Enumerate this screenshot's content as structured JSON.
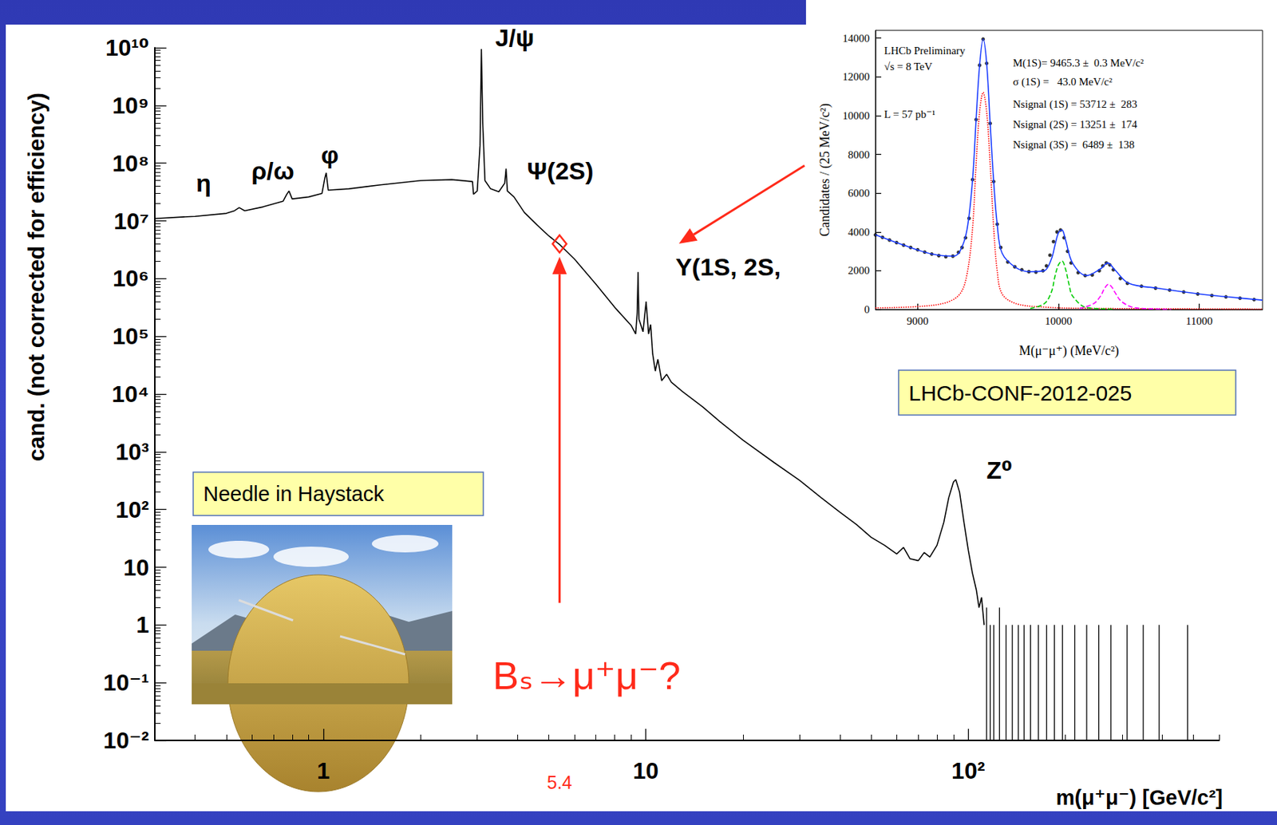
{
  "chart_data": [
    {
      "type": "line",
      "x_label": "m(μ⁺μ⁻) [GeV/c²]",
      "y_label": "cand. (not corrected for efficiency)",
      "log": true,
      "grid": false,
      "xlim": [
        0.3,
        600
      ],
      "xticks": [
        1,
        10,
        {
          "value": 100,
          "label": "10²"
        }
      ],
      "ylim": [
        0.01,
        10000000000
      ],
      "yticks": [
        {
          "value": 10000000000,
          "label": "10¹⁰"
        },
        {
          "value": 1000000000,
          "label": "10⁹"
        },
        {
          "value": 100000000,
          "label": "10⁸"
        },
        {
          "value": 10000000,
          "label": "10⁷"
        },
        {
          "value": 1000000,
          "label": "10⁶"
        },
        {
          "value": 100000,
          "label": "10⁵"
        },
        {
          "value": 10000,
          "label": "10⁴"
        },
        {
          "value": 1000,
          "label": "10³"
        },
        {
          "value": 100,
          "label": "10²"
        },
        10,
        1,
        {
          "value": 0.1,
          "label": "10⁻¹"
        },
        {
          "value": 0.01,
          "label": "10⁻²"
        }
      ],
      "series": [
        {
          "type": "line",
          "color": "#000000",
          "line_style": "solid",
          "x": [
            0.3,
            0.4,
            0.5,
            0.53,
            0.548,
            0.57,
            0.65,
            0.75,
            0.77,
            0.782,
            0.8,
            0.9,
            0.99,
            1.01,
            1.02,
            1.035,
            1.2,
            1.5,
            2.0,
            2.5,
            2.9,
            2.92,
            3.0,
            3.06,
            3.09,
            3.12,
            3.17,
            3.3,
            3.5,
            3.65,
            3.686,
            3.72,
            3.9,
            4.2,
            4.6,
            5.0,
            5.4,
            6.0,
            7.0,
            8.0,
            9.0,
            9.3,
            9.4,
            9.46,
            9.52,
            9.8,
            10.02,
            10.2,
            10.35,
            10.5,
            10.7,
            10.9,
            11.2,
            11.6,
            12,
            13,
            15,
            17,
            20,
            25,
            30,
            35,
            40,
            45,
            50,
            55,
            60,
            63,
            66,
            70,
            73,
            76,
            80,
            84,
            87,
            90,
            91.5,
            94,
            97,
            100,
            103,
            106,
            108,
            110,
            112
          ],
          "values": [
            11000000,
            12000000,
            13500000,
            15000000,
            17000000,
            15000000,
            17500000,
            22000000,
            29000000,
            33000000,
            24000000,
            26000000,
            30000000,
            55000000,
            68000000,
            34000000,
            36000000,
            42000000,
            50000000,
            52000000,
            48000000,
            29000000,
            33000000,
            200000000,
            9500000000,
            500000000,
            50000000,
            36000000,
            32000000,
            45000000,
            80000000,
            33000000,
            26000000,
            14000000,
            8500000,
            5500000,
            3900000,
            2200000,
            800000,
            320000,
            155000,
            110000,
            250000,
            1300000,
            200000,
            120000,
            400000,
            110000,
            160000,
            50000,
            25000,
            40000,
            17000,
            22000,
            16000,
            11000,
            6000,
            3300,
            1600,
            650,
            320,
            160,
            90,
            55,
            33,
            24,
            17,
            22,
            14,
            13,
            18,
            15,
            24,
            60,
            160,
            300,
            330,
            200,
            60,
            20,
            8,
            4,
            2,
            3,
            1
          ]
        },
        {
          "type": "spike",
          "color": "#000000",
          "x": [
            114,
            117,
            120,
            125,
            131,
            137,
            143,
            149,
            156,
            165,
            175,
            185,
            196,
            214,
            233,
            254,
            277,
            311,
            349,
            391,
            479
          ],
          "values": [
            2,
            1,
            1,
            2,
            1,
            1,
            1,
            1,
            1,
            1,
            1,
            1,
            1,
            1,
            1,
            1,
            1,
            1,
            1,
            1,
            1
          ]
        }
      ],
      "annotations": [
        {
          "text": "η",
          "x": 0.425,
          "y": 46000000
        },
        {
          "text": "ρ/ω",
          "x": 0.697,
          "y": 74000000
        },
        {
          "text": "φ",
          "x": 1.047,
          "y": 140000000
        },
        {
          "text": "J/ψ",
          "x": 3.92,
          "y": 15000000000
        },
        {
          "text": "Ψ(2S)",
          "x": 5.43,
          "y": 74000000
        },
        {
          "text": "Υ(1S, 2S,",
          "x": 18,
          "y": 1600000
        },
        {
          "text": "Z⁰",
          "x": 125,
          "y": 480
        },
        {
          "text": "Bₛ→μ⁺μ⁻?",
          "x": 6.55,
          "y": 0.135,
          "color": "#ff2a1a"
        },
        {
          "text": "5.4",
          "x": 5.4,
          "y": 0.0019,
          "color": "#ff2a1a"
        },
        {
          "marker": "diamond",
          "x": 5.4,
          "y": 4000000,
          "color": "#ff2a1a"
        }
      ],
      "boxed_notes": [
        "Needle in Haystack"
      ]
    },
    {
      "type": "line",
      "x_label": "M(μ⁻μ⁺) (MeV/c²)",
      "y_label": "Candidates / (25 MeV/c²)",
      "grid": false,
      "xlim": [
        8700,
        11450
      ],
      "xticks": [
        9000,
        10000,
        11000
      ],
      "ylim": [
        0,
        14400
      ],
      "yticks": [
        0,
        2000,
        4000,
        6000,
        8000,
        10000,
        12000,
        14000
      ],
      "series": [
        {
          "type": "line",
          "color": "#ff0000",
          "line_style": "dotted",
          "x": [
            8700,
            9000,
            9200,
            9300,
            9350,
            9390,
            9415,
            9440,
            9465,
            9490,
            9515,
            9540,
            9565,
            9600,
            9700,
            9900,
            10200,
            11450
          ],
          "values": [
            80,
            150,
            350,
            800,
            1800,
            4200,
            7500,
            10200,
            11200,
            10200,
            7500,
            4200,
            2000,
            800,
            300,
            120,
            60,
            20
          ]
        },
        {
          "type": "line",
          "color": "#00cc00",
          "line_style": "dashed",
          "x": [
            9800,
            9900,
            9950,
            9975,
            10000,
            10025,
            10050,
            10075,
            10100,
            10200,
            10400
          ],
          "values": [
            50,
            300,
            900,
            1700,
            2300,
            2500,
            2100,
            1300,
            700,
            100,
            20
          ]
        },
        {
          "type": "line",
          "color": "#ff00ff",
          "line_style": "dashed",
          "x": [
            10150,
            10250,
            10300,
            10325,
            10355,
            10380,
            10400,
            10450,
            10550,
            10800
          ],
          "values": [
            50,
            300,
            700,
            1050,
            1300,
            1150,
            900,
            400,
            80,
            10
          ]
        },
        {
          "type": "line",
          "color": "#1a3cff",
          "line_style": "solid",
          "x": [
            8700,
            8900,
            9100,
            9250,
            9300,
            9350,
            9390,
            9415,
            9440,
            9465,
            9490,
            9515,
            9540,
            9565,
            9600,
            9700,
            9800,
            9900,
            9950,
            9975,
            10000,
            10025,
            10050,
            10100,
            10200,
            10300,
            10350,
            10400,
            10500,
            10700,
            11000,
            11200,
            11450
          ],
          "values": [
            3850,
            3320,
            2860,
            2750,
            3000,
            4100,
            6700,
            9800,
            12600,
            13950,
            12700,
            9600,
            6600,
            4400,
            2900,
            2150,
            1950,
            2000,
            2600,
            3300,
            3950,
            4100,
            3600,
            2400,
            1750,
            2100,
            2400,
            2050,
            1350,
            1100,
            800,
            650,
            480
          ]
        },
        {
          "type": "scatter",
          "color": "#000000",
          "marker": "circle",
          "x": [
            8700,
            8750,
            8800,
            8850,
            8900,
            8950,
            9000,
            9050,
            9100,
            9150,
            9200,
            9250,
            9290,
            9315,
            9340,
            9365,
            9390,
            9415,
            9440,
            9465,
            9490,
            9515,
            9540,
            9565,
            9590,
            9640,
            9690,
            9740,
            9790,
            9840,
            9890,
            9915,
            9940,
            9965,
            9990,
            10015,
            10040,
            10065,
            10090,
            10140,
            10190,
            10240,
            10290,
            10315,
            10340,
            10365,
            10390,
            10440,
            10490,
            10590,
            10690,
            10790,
            10890,
            10990,
            11090,
            11190,
            11290,
            11390
          ],
          "values": [
            3850,
            3720,
            3580,
            3450,
            3320,
            3200,
            3080,
            2960,
            2860,
            2780,
            2720,
            2750,
            2950,
            3200,
            3700,
            4700,
            6700,
            9800,
            12600,
            13950,
            12700,
            9600,
            6600,
            4400,
            3200,
            2450,
            2200,
            2050,
            1950,
            1930,
            2000,
            2250,
            2800,
            3500,
            4000,
            4100,
            3700,
            3000,
            2400,
            1900,
            1750,
            1780,
            2000,
            2250,
            2400,
            2300,
            2050,
            1600,
            1350,
            1200,
            1100,
            1000,
            900,
            800,
            720,
            650,
            580,
            510
          ]
        }
      ],
      "annotations": {
        "left": [
          "LHCb Preliminary",
          "√s = 8 TeV",
          "L = 57 pb⁻¹"
        ],
        "right": [
          "M(1S)= 9465.3 ±  0.3 MeV/c²",
          "σ (1S) =   43.0 MeV/c²",
          "Nsignal (1S) = 53712 ±  283",
          "Nsignal (2S) = 13251 ±  174",
          "Nsignal (3S) =  6489 ±  138"
        ]
      },
      "boxed_notes": [
        "LHCb-CONF-2012-025"
      ]
    }
  ]
}
